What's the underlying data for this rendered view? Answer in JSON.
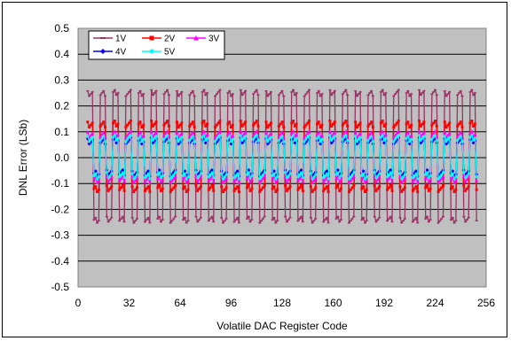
{
  "chart_data": {
    "type": "line",
    "title": "",
    "xlabel": "Volatile DAC Register Code",
    "ylabel": "DNL Error (LSb)",
    "xlim": [
      0,
      256
    ],
    "ylim": [
      -0.5,
      0.5
    ],
    "x_ticks": [
      "0",
      "32",
      "64",
      "96",
      "128",
      "160",
      "192",
      "224",
      "256"
    ],
    "y_ticks": [
      "0.5",
      "0.4",
      "0.3",
      "0.2",
      "0.1",
      "0.0",
      "-0.1",
      "-0.2",
      "-0.3",
      "-0.4",
      "-0.5"
    ],
    "grid": true,
    "plot_background": "#c0c0c0",
    "legend_position": "top-left",
    "pattern": "alternating high/low DNL error every 4 codes from code 6 to 250",
    "x_start": 6,
    "x_end": 250,
    "period_codes": 8,
    "series": [
      {
        "name": "1V",
        "color": "#993366",
        "marker": "dash",
        "high": 0.25,
        "low": -0.24
      },
      {
        "name": "2V",
        "color": "#ff0000",
        "marker": "square",
        "high": 0.13,
        "low": -0.12
      },
      {
        "name": "3V",
        "color": "#ff00ff",
        "marker": "triangle",
        "high": 0.09,
        "low": -0.085
      },
      {
        "name": "4V",
        "color": "#0000ff",
        "marker": "diamond",
        "high": 0.065,
        "low": -0.06
      },
      {
        "name": "5V",
        "color": "#00ffff",
        "marker": "circle",
        "high": 0.075,
        "low": -0.07
      }
    ]
  }
}
